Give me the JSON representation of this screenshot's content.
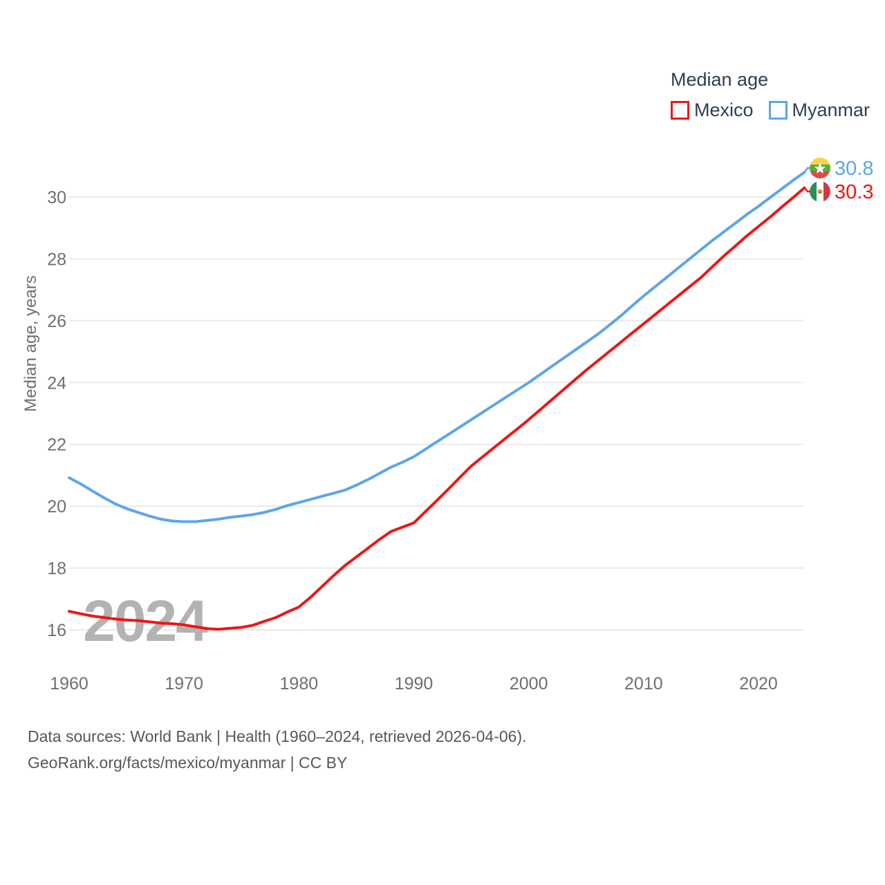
{
  "legend": {
    "title": "Median age",
    "items": [
      {
        "label": "Mexico",
        "color": "#f21414"
      },
      {
        "label": "Myanmar",
        "color": "#5ea5e9"
      }
    ]
  },
  "watermark": "2024",
  "y_axis": {
    "title": "Median age, years"
  },
  "footer": {
    "line1": "Data sources: World Bank | Health (1960–2024, retrieved 2026-04-06).",
    "line2": "GeoRank.org/facts/mexico/myanmar | CC BY"
  },
  "end_markers": [
    {
      "series": "Myanmar",
      "flag_icon": "myanmar-flag-icon",
      "value_label": "30.8"
    },
    {
      "series": "Mexico",
      "flag_icon": "mexico-flag-icon",
      "value_label": "30.3"
    }
  ],
  "chart_data": {
    "type": "line",
    "title": "Median age",
    "xlabel": "",
    "ylabel": "Median age, years",
    "ylim": [
      15.3,
      31.3
    ],
    "x_range": [
      1960,
      2024
    ],
    "grid": true,
    "legend_position": "top-right",
    "y_ticks": [
      16,
      18,
      20,
      22,
      24,
      26,
      28,
      30
    ],
    "x_ticks": [
      1960,
      1970,
      1980,
      1990,
      2000,
      2010,
      2020
    ],
    "x": [
      1960,
      1961,
      1962,
      1963,
      1964,
      1965,
      1966,
      1967,
      1968,
      1969,
      1970,
      1971,
      1972,
      1973,
      1974,
      1975,
      1976,
      1977,
      1978,
      1979,
      1980,
      1981,
      1982,
      1983,
      1984,
      1985,
      1986,
      1987,
      1988,
      1989,
      1990,
      1991,
      1992,
      1993,
      1994,
      1995,
      1996,
      1997,
      1998,
      1999,
      2000,
      2001,
      2002,
      2003,
      2004,
      2005,
      2006,
      2007,
      2008,
      2009,
      2010,
      2011,
      2012,
      2013,
      2014,
      2015,
      2016,
      2017,
      2018,
      2019,
      2020,
      2021,
      2022,
      2023,
      2024
    ],
    "series": [
      {
        "name": "Mexico",
        "color": "#f21414",
        "end_label": "30.3",
        "values": [
          16.6,
          16.52,
          16.45,
          16.4,
          16.35,
          16.32,
          16.3,
          16.26,
          16.22,
          16.2,
          16.16,
          16.1,
          16.04,
          16.02,
          16.05,
          16.08,
          16.15,
          16.28,
          16.4,
          16.58,
          16.74,
          17.05,
          17.4,
          17.75,
          18.08,
          18.36,
          18.64,
          18.92,
          19.18,
          19.32,
          19.46,
          19.82,
          20.18,
          20.55,
          20.93,
          21.3,
          21.6,
          21.9,
          22.2,
          22.5,
          22.8,
          23.12,
          23.44,
          23.76,
          24.08,
          24.4,
          24.7,
          25.0,
          25.3,
          25.6,
          25.9,
          26.2,
          26.5,
          26.8,
          27.1,
          27.4,
          27.75,
          28.1,
          28.42,
          28.75,
          29.05,
          29.35,
          29.67,
          29.98,
          30.3
        ]
      },
      {
        "name": "Myanmar",
        "color": "#5ea5e9",
        "end_label": "30.8",
        "values": [
          20.92,
          20.72,
          20.5,
          20.28,
          20.08,
          19.92,
          19.8,
          19.68,
          19.58,
          19.52,
          19.5,
          19.5,
          19.54,
          19.58,
          19.64,
          19.68,
          19.73,
          19.8,
          19.9,
          20.02,
          20.12,
          20.22,
          20.32,
          20.42,
          20.52,
          20.68,
          20.86,
          21.06,
          21.26,
          21.42,
          21.6,
          21.84,
          22.08,
          22.32,
          22.56,
          22.8,
          23.04,
          23.28,
          23.52,
          23.76,
          24.0,
          24.26,
          24.52,
          24.78,
          25.04,
          25.3,
          25.56,
          25.85,
          26.15,
          26.48,
          26.8,
          27.1,
          27.4,
          27.7,
          28.0,
          28.3,
          28.6,
          28.88,
          29.16,
          29.44,
          29.7,
          29.98,
          30.26,
          30.54,
          30.8
        ]
      }
    ]
  }
}
